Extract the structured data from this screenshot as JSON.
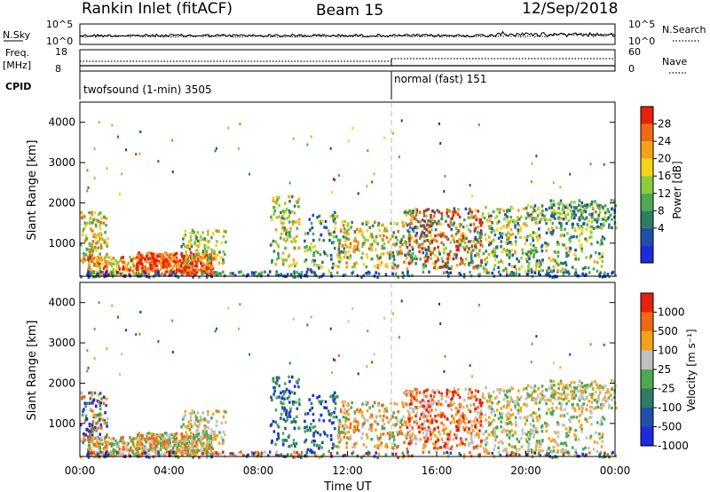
{
  "header": {
    "station": "Rankin Inlet (fitACF)",
    "beam": "Beam 15",
    "date": "12/Sep/2018"
  },
  "panels": {
    "nsky": {
      "label": "N.Sky",
      "y_ticks": [
        "10^5",
        "10^0"
      ]
    },
    "nsearch": {
      "label": "N.Search",
      "y_ticks": [
        "10^5",
        "10^0"
      ]
    },
    "freq": {
      "label_top": "Freq.",
      "label_bottom": "[MHz]",
      "y_ticks": [
        "18",
        "8"
      ]
    },
    "nave": {
      "label": "Nave",
      "y_ticks": [
        "60",
        "0"
      ]
    },
    "cpid": {
      "label": "CPID",
      "modes": [
        {
          "name": "twofsound (1-min) 3505",
          "start_hour": 0,
          "end_hour": 14
        },
        {
          "name": "normal (fast) 151",
          "start_hour": 14,
          "end_hour": 24
        }
      ]
    }
  },
  "chart_data": [
    {
      "type": "heatmap",
      "title": "",
      "quantity": "Power",
      "ylabel": "Slant Range [km]",
      "xlabel": "",
      "xlim": [
        0,
        24
      ],
      "ylim": [
        180,
        4500
      ],
      "y_ticks": [
        1000,
        2000,
        3000,
        4000
      ],
      "colorbar": {
        "label": "Power [dB]",
        "ticks": [
          "28",
          "24",
          "20",
          "16",
          "12",
          "8",
          "4"
        ],
        "colors": [
          "#1c2bdc",
          "#1f4fa8",
          "#2e7d60",
          "#4caa52",
          "#8ccc3c",
          "#f5d21b",
          "#f5a21a",
          "#f06a14",
          "#e8210f"
        ]
      },
      "dominant_echo_bands": [
        {
          "from_hour": 0.0,
          "to_hour": 1.2,
          "range_km": [
            500,
            1800
          ],
          "level": "12-24 dB"
        },
        {
          "from_hour": 2.5,
          "to_hour": 6.0,
          "range_km": [
            250,
            800
          ],
          "level": "20-32 dB"
        },
        {
          "from_hour": 14.5,
          "to_hour": 18.0,
          "range_km": [
            400,
            1900
          ],
          "level": "8-28 dB"
        },
        {
          "from_hour": 18.0,
          "to_hour": 23.5,
          "range_km": [
            300,
            2000
          ],
          "level": "4-16 dB"
        }
      ]
    },
    {
      "type": "heatmap",
      "title": "",
      "quantity": "Velocity",
      "ylabel": "Slant Range [km]",
      "xlabel": "Time UT",
      "xlim": [
        0,
        24
      ],
      "ylim": [
        180,
        4500
      ],
      "y_ticks": [
        1000,
        2000,
        3000,
        4000
      ],
      "x_ticks": [
        "00:00",
        "04:00",
        "08:00",
        "12:00",
        "16:00",
        "20:00",
        "00:00"
      ],
      "colorbar": {
        "label": "Velocity [m s⁻¹]",
        "ticks": [
          "1000",
          "500",
          "100",
          "25",
          "-25",
          "-100",
          "-500",
          "-1000"
        ],
        "colors": [
          "#1c2bdc",
          "#1f4fa8",
          "#2e7d60",
          "#4caa52",
          "#c0c0c0",
          "#f5a21a",
          "#f06a14",
          "#e8210f"
        ]
      }
    }
  ]
}
